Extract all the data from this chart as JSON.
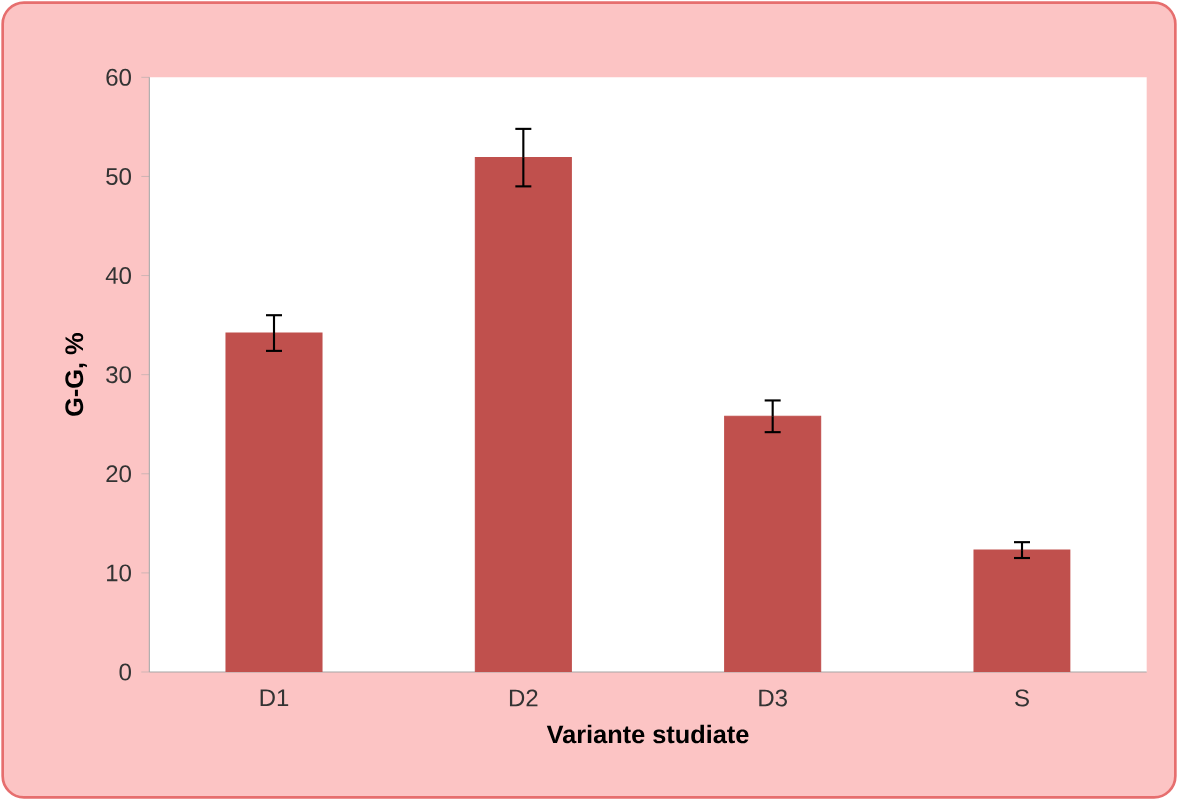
{
  "chart_data": {
    "type": "bar",
    "xlabel": "Variante studiate",
    "ylabel": "G-G, %",
    "categories": [
      "D1",
      "D2",
      "D3",
      "S"
    ],
    "values": [
      34.2,
      51.9,
      25.8,
      12.3
    ],
    "errors": [
      1.8,
      2.9,
      1.6,
      0.8
    ],
    "color": "#c0504d",
    "ylim": [
      0,
      60
    ],
    "yticks": [
      0,
      10,
      20,
      30,
      40,
      50,
      60
    ],
    "grid": false
  }
}
